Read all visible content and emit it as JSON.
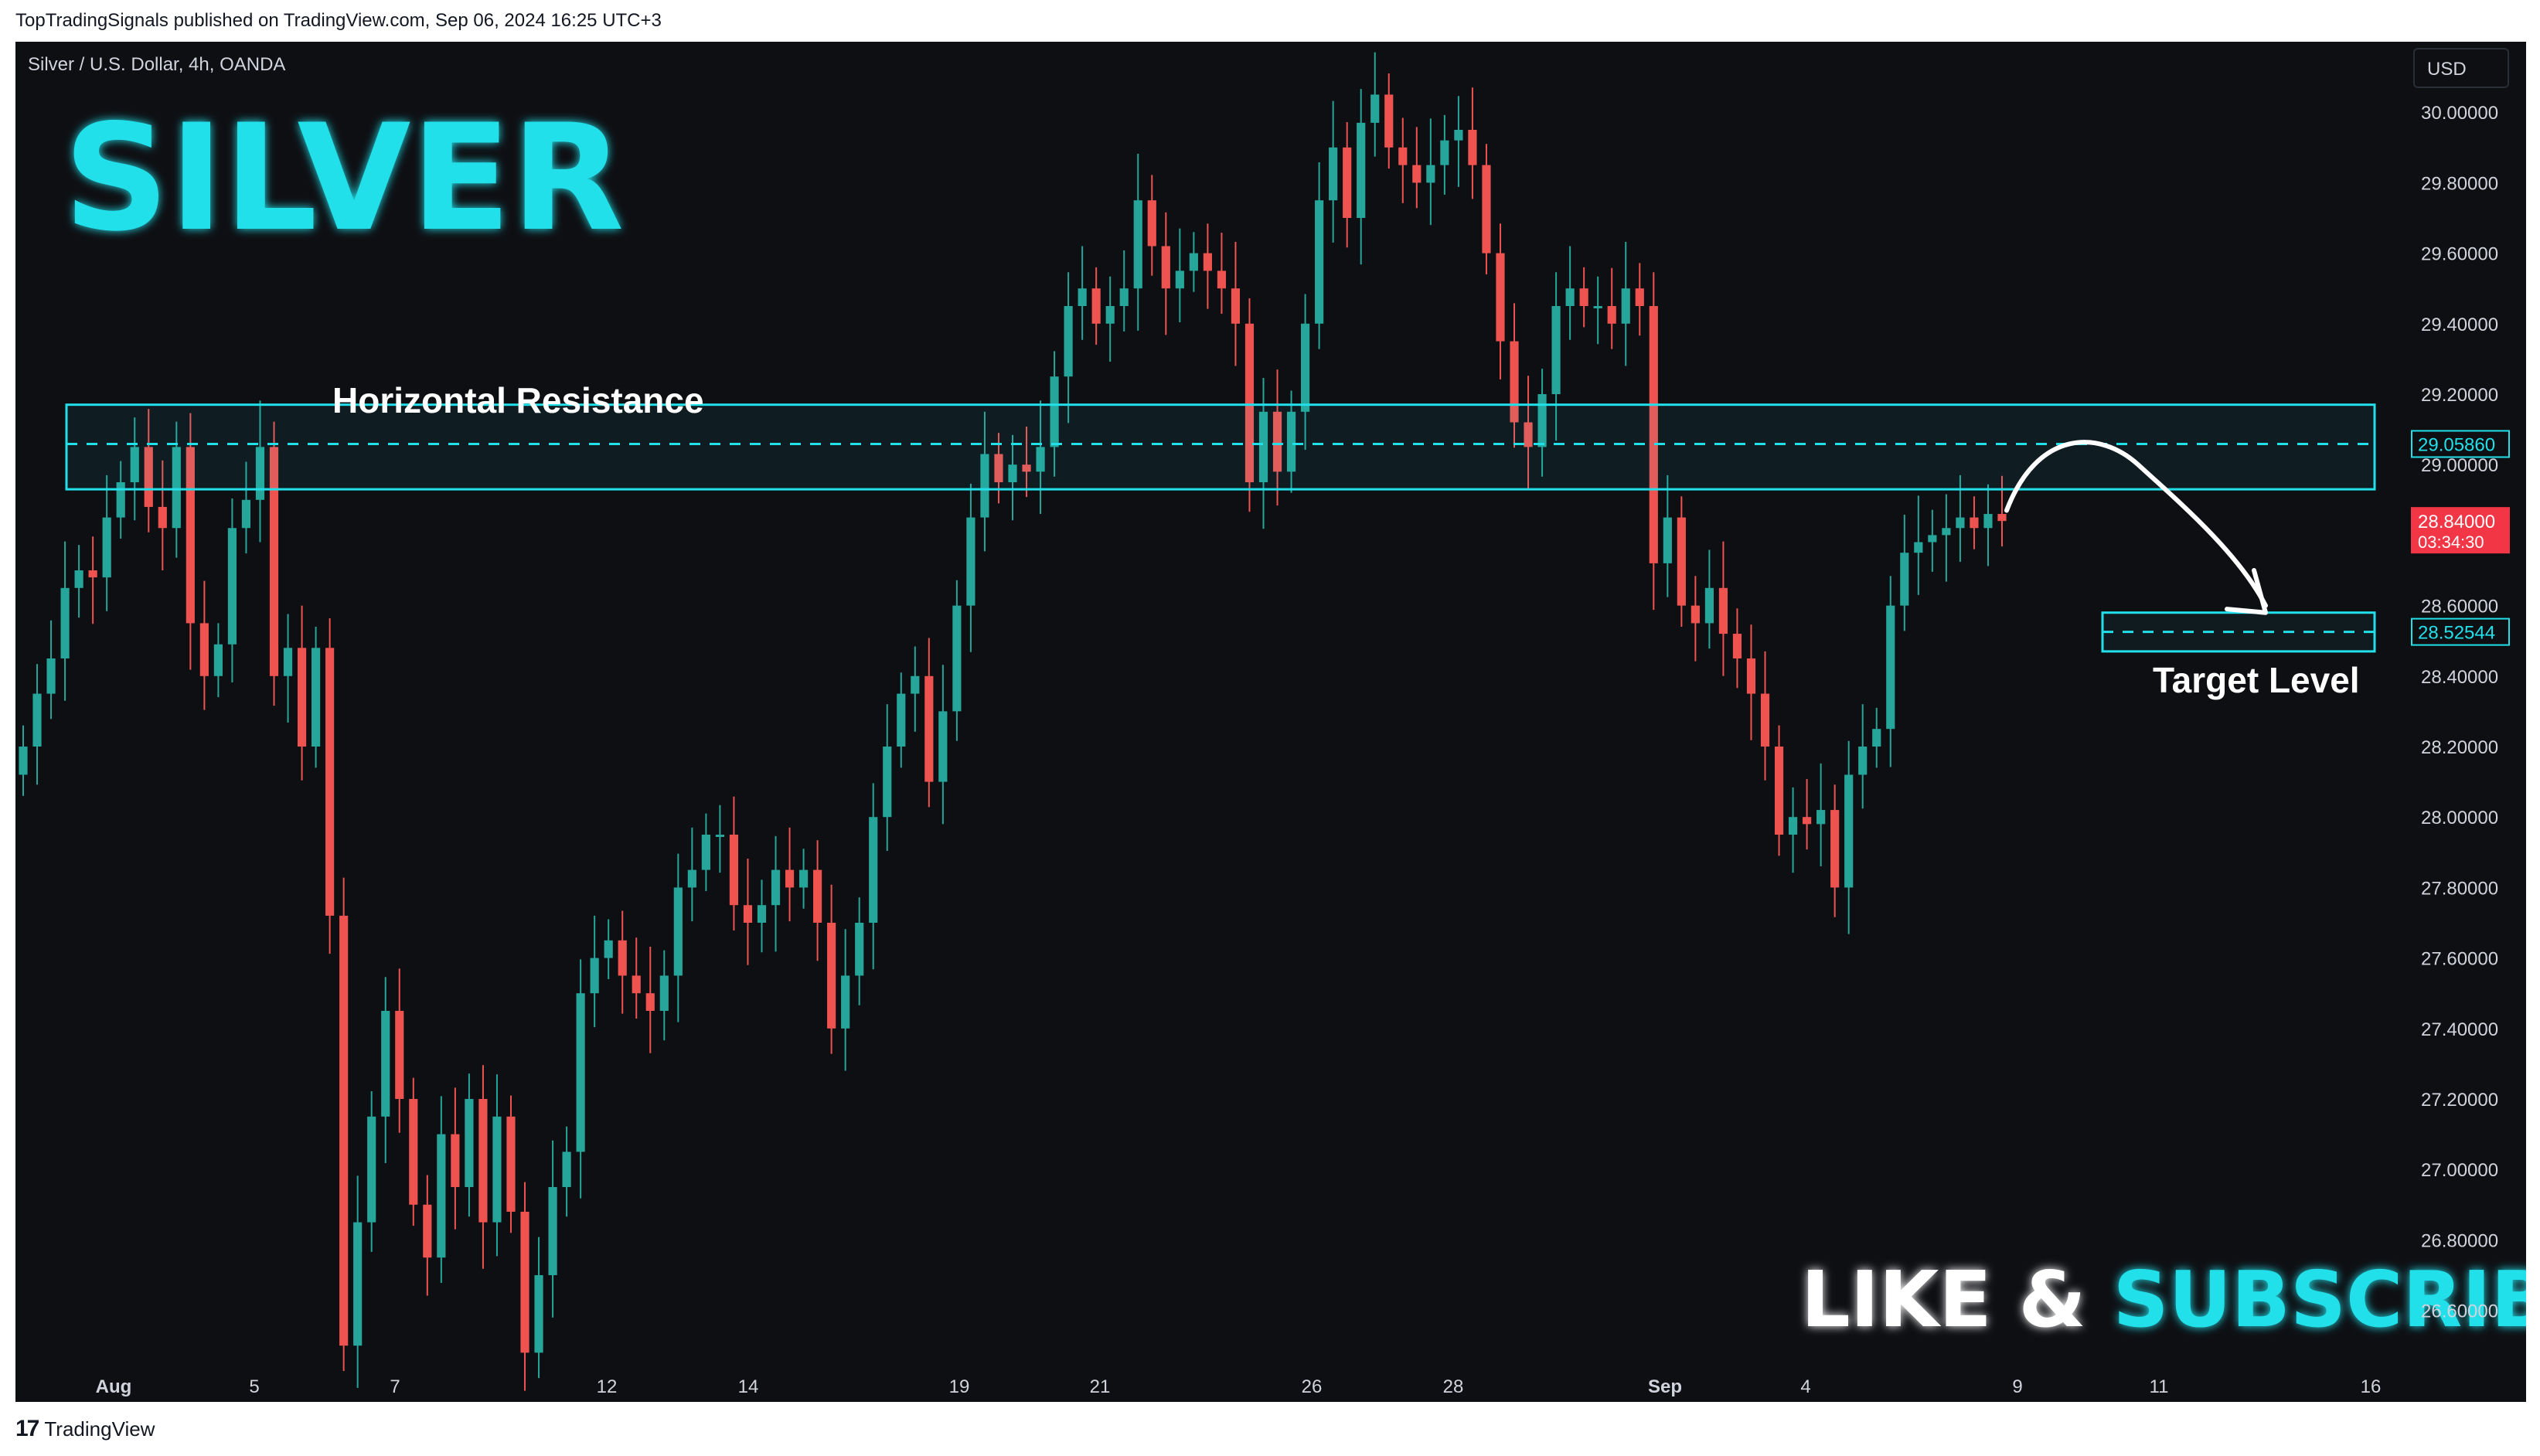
{
  "publish_info": "TopTradingSignals published on TradingView.com, Sep 06, 2024 16:25 UTC+3",
  "symbol": "Silver / U.S. Dollar, 4h, OANDA",
  "currency_button": "USD",
  "footer_brand": "TradingView",
  "footer_logo_mark": "17",
  "overlay_text": {
    "title": "SILVER",
    "resistance_label": "Horizontal Resistance",
    "target_label": "Target Level",
    "cta_like": "LIKE & ",
    "cta_subscribe": "SUBSCRIBE"
  },
  "colors": {
    "background": "#0e0f13",
    "up_candle": "#26a69a",
    "down_candle": "#ef5350",
    "accent_cyan": "#22e0ea",
    "current_price": "#f23645"
  },
  "chart_data": {
    "type": "candlestick",
    "title": "Silver / U.S. Dollar, 4h, OANDA",
    "y_axis": {
      "ticks": [
        "30.00000",
        "29.80000",
        "29.60000",
        "29.40000",
        "29.20000",
        "29.00000",
        "28.60000",
        "28.40000",
        "28.20000",
        "28.00000",
        "27.80000",
        "27.60000",
        "27.40000",
        "27.20000",
        "27.00000",
        "26.80000",
        "26.60000"
      ],
      "ylim": [
        26.45,
        30.2
      ]
    },
    "x_axis": {
      "ticks": [
        "Aug",
        "5",
        "7",
        "12",
        "14",
        "19",
        "21",
        "26",
        "28",
        "Sep",
        "4",
        "9",
        "11",
        "16"
      ]
    },
    "price_tags": [
      {
        "name": "resistance_level",
        "value": "29.05860",
        "style": "cyan"
      },
      {
        "name": "current_price",
        "value": "28.84000",
        "countdown": "03:34:30",
        "style": "red"
      },
      {
        "name": "target_level",
        "value": "28.52544",
        "style": "cyan"
      }
    ],
    "zones": [
      {
        "name": "Horizontal Resistance",
        "low": 28.93,
        "high": 29.17,
        "mid": 29.0586
      },
      {
        "name": "Target Level",
        "low": 28.47,
        "high": 28.58,
        "mid": 28.52544
      }
    ],
    "close_series": [
      28.2,
      28.35,
      28.45,
      28.65,
      28.7,
      28.68,
      28.85,
      28.95,
      29.05,
      28.88,
      28.82,
      29.05,
      28.55,
      28.4,
      28.49,
      28.82,
      28.9,
      29.05,
      28.4,
      28.48,
      28.2,
      28.48,
      27.72,
      26.5,
      26.85,
      27.15,
      27.45,
      27.2,
      26.9,
      26.75,
      27.1,
      26.95,
      27.2,
      26.85,
      27.15,
      26.88,
      26.48,
      26.7,
      26.95,
      27.05,
      27.5,
      27.6,
      27.65,
      27.55,
      27.5,
      27.45,
      27.55,
      27.8,
      27.85,
      27.95,
      27.95,
      27.75,
      27.7,
      27.75,
      27.85,
      27.8,
      27.85,
      27.7,
      27.4,
      27.55,
      27.7,
      28.0,
      28.2,
      28.35,
      28.4,
      28.1,
      28.3,
      28.6,
      28.85,
      29.03,
      28.95,
      29.0,
      28.98,
      29.05,
      29.25,
      29.45,
      29.5,
      29.4,
      29.45,
      29.5,
      29.75,
      29.62,
      29.5,
      29.55,
      29.6,
      29.55,
      29.5,
      29.4,
      28.95,
      29.15,
      28.98,
      29.15,
      29.4,
      29.75,
      29.9,
      29.7,
      29.97,
      30.05,
      29.9,
      29.85,
      29.8,
      29.85,
      29.92,
      29.95,
      29.85,
      29.6,
      29.35,
      29.12,
      29.05,
      29.2,
      29.45,
      29.5,
      29.45,
      29.45,
      29.4,
      29.5,
      29.45,
      28.72,
      28.85,
      28.6,
      28.55,
      28.65,
      28.52,
      28.45,
      28.35,
      28.2,
      27.95,
      28.0,
      27.98,
      28.02,
      27.8,
      28.12,
      28.2,
      28.25,
      28.6,
      28.75,
      28.78,
      28.8,
      28.82,
      28.85,
      28.82,
      28.86,
      28.84
    ],
    "series_note": ""
  }
}
